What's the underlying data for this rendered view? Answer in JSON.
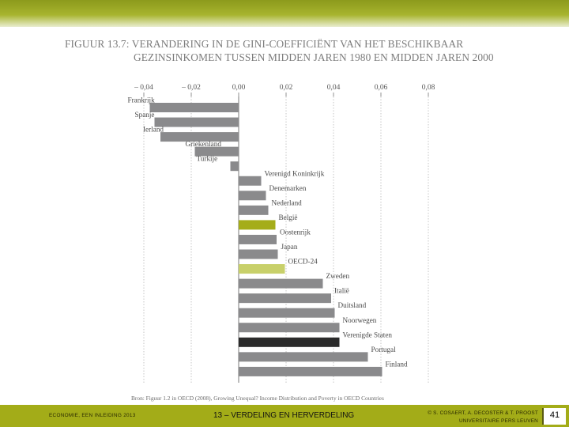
{
  "title": {
    "line1": "FIGUUR 13.7: VERANDERING IN DE GINI-COEFFICIËNT VAN HET BESCHIKBAAR",
    "line2": "GEZINSINKOMEN TUSSEN MIDDEN JAREN 1980 EN MIDDEN JAREN 2000"
  },
  "chart_data": {
    "type": "bar",
    "orientation": "horizontal",
    "title": "Verandering in de Gini-coëfficiënt van het beschikbaar gezinsinkomen tussen midden jaren 1980 en midden jaren 2000",
    "xlim": [
      -0.04,
      0.08
    ],
    "xticks": [
      -0.04,
      -0.02,
      0.0,
      0.02,
      0.04,
      0.06,
      0.08
    ],
    "xtick_labels": [
      "– 0,04",
      "– 0,02",
      "0,00",
      "0,02",
      "0,04",
      "0,06",
      "0,08"
    ],
    "grid": true,
    "colors": {
      "default": "#8a8a8c",
      "belgie": "#a5ad1a",
      "oecd": "#c8d06a",
      "vs": "#2b2b2b"
    },
    "categories": [
      "Frankrijk",
      "Spanje",
      "Ierland",
      "Griekenland",
      "Turkije",
      "Verenigd Koninkrijk",
      "Denemarken",
      "Nederland",
      "België",
      "Oostenrijk",
      "Japan",
      "OECD-24",
      "Zweden",
      "Italië",
      "Duitsland",
      "Noorwegen",
      "Verenigde Staten",
      "Portugal",
      "Finland"
    ],
    "values": [
      -0.0375,
      -0.0355,
      -0.033,
      -0.0185,
      -0.0035,
      0.0095,
      0.0115,
      0.0125,
      0.0155,
      0.016,
      0.0165,
      0.0195,
      0.0355,
      0.039,
      0.0405,
      0.0425,
      0.0425,
      0.0545,
      0.0605
    ],
    "highlight": {
      "België": "belgie",
      "OECD-24": "oecd",
      "Verenigde Staten": "vs"
    }
  },
  "source": "Bron: Figuur 1.2 in OECD (2008), Growing Unequal? Income Distribution and Poverty in OECD Countries",
  "footer": {
    "left": "ECONOMIE, EEN INLEIDING 2013",
    "center": "13 – VERDELING EN HERVERDELING",
    "right_line1": "© S. COSAERT, A. DECOSTER & T. PROOST",
    "right_line2": "UNIVERSITAIRE PERS LEUVEN",
    "page": "41"
  }
}
